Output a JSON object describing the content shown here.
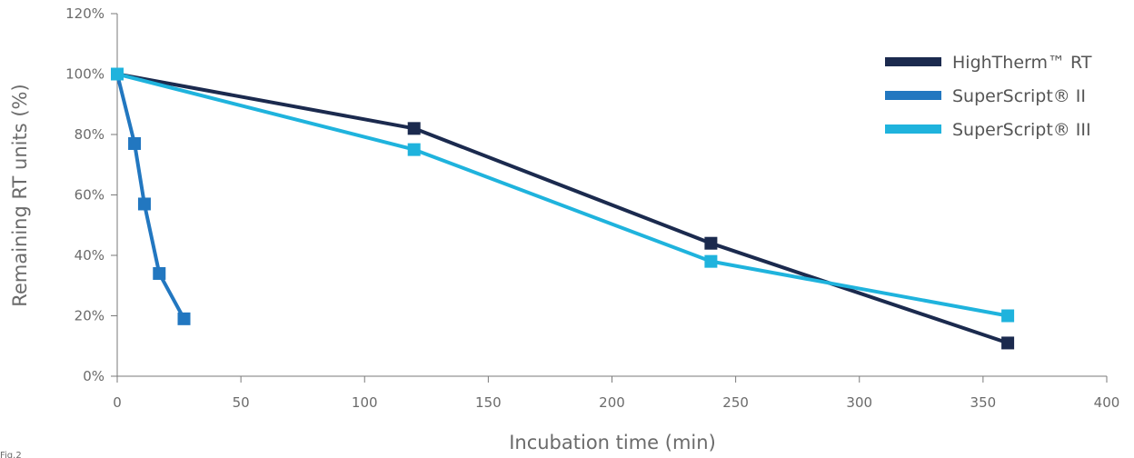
{
  "figure_label": "Fig.2",
  "chart_data": {
    "type": "line",
    "xlabel": "Incubation time (min)",
    "ylabel": "Remaining RT units (%)",
    "xlim": [
      0,
      400
    ],
    "ylim": [
      0,
      120
    ],
    "x_ticks": [
      0,
      50,
      100,
      150,
      200,
      250,
      300,
      350,
      400
    ],
    "y_ticks": [
      0,
      20,
      40,
      60,
      80,
      100,
      120
    ],
    "y_tick_suffix": "%",
    "grid": false,
    "legend_position": "top-right",
    "series": [
      {
        "name": "HighTherm™ RT",
        "color": "#1b2a4e",
        "marker": "square",
        "x": [
          0,
          120,
          240,
          360
        ],
        "y": [
          100,
          82,
          44,
          11
        ]
      },
      {
        "name": "SuperScript® II",
        "color": "#2277c0",
        "marker": "square",
        "x": [
          0,
          7,
          11,
          17,
          27
        ],
        "y": [
          100,
          77,
          57,
          34,
          19
        ]
      },
      {
        "name": "SuperScript® III",
        "color": "#1fb3dd",
        "marker": "square",
        "x": [
          0,
          120,
          240,
          360
        ],
        "y": [
          100,
          75,
          38,
          20
        ]
      }
    ]
  }
}
